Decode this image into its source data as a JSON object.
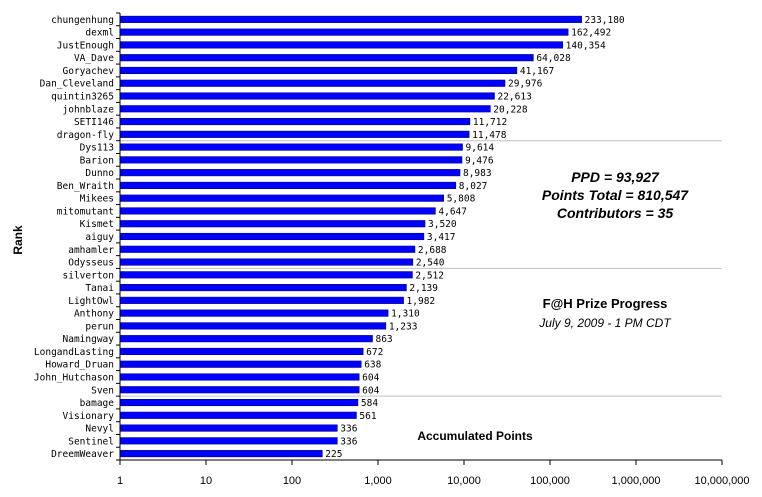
{
  "chart_data": {
    "type": "bar",
    "orientation": "horizontal",
    "scale": "log",
    "categories": [
      "chungenhung",
      "dexml",
      "JustEnough",
      "VA_Dave",
      "Goryachev",
      "Dan_Cleveland",
      "quintin3265",
      "johnblaze",
      "SETI146",
      "dragon-fly",
      "Dys113",
      "Barion",
      "Dunno",
      "Ben_Wraith",
      "Mikees",
      "mitomutant",
      "Kismet",
      "aiguy",
      "amhamler",
      "Odysseus",
      "silverton",
      "Tanai",
      "LightOwl",
      "Anthony",
      "perun",
      "Namingway",
      "LongandLasting",
      "Howard_Druan",
      "John_Hutchason",
      "Sven",
      "bamage",
      "Visionary",
      "Nevyl",
      "Sentinel",
      "DreemWeaver"
    ],
    "values": [
      233180,
      162492,
      140354,
      64028,
      41167,
      29976,
      22613,
      20228,
      11712,
      11478,
      9614,
      9476,
      8983,
      8027,
      5808,
      4647,
      3520,
      3417,
      2688,
      2540,
      2512,
      2139,
      1982,
      1310,
      1233,
      863,
      672,
      638,
      604,
      604,
      584,
      561,
      336,
      336,
      225
    ],
    "value_labels": [
      "233,180",
      "162,492",
      "140,354",
      "64,028",
      "41,167",
      "29,976",
      "22,613",
      "20,228",
      "11,712",
      "11,478",
      "9,614",
      "9,476",
      "8,983",
      "8,027",
      "5,808",
      "4,647",
      "3,520",
      "3,417",
      "2,688",
      "2,540",
      "2,512",
      "2,139",
      "1,982",
      "1,310",
      "1,233",
      "863",
      "672",
      "638",
      "604",
      "604",
      "584",
      "561",
      "336",
      "336",
      "225"
    ],
    "x_ticks": [
      1,
      10,
      100,
      1000,
      10000,
      100000,
      1000000,
      10000000
    ],
    "x_tick_labels": [
      "1",
      "10",
      "100",
      "1,000",
      "10,000",
      "100,000",
      "1,000,000",
      "10,000,000"
    ],
    "xlim": [
      1,
      10000000
    ],
    "xlabel": "Accumulated Points",
    "ylabel": "Rank",
    "bar_color": "#0000FF",
    "bar_edge_color": "#000080",
    "grid_color": "#C0C0C0",
    "grid_every_n_rows": 10,
    "annotations": {
      "ppd": "PPD = 93,927",
      "points_total": "Points Total = 810,547",
      "contributors": "Contributors = 35",
      "title": "F@H Prize Progress",
      "subtitle": "July 9, 2009 - 1 PM CDT"
    }
  }
}
